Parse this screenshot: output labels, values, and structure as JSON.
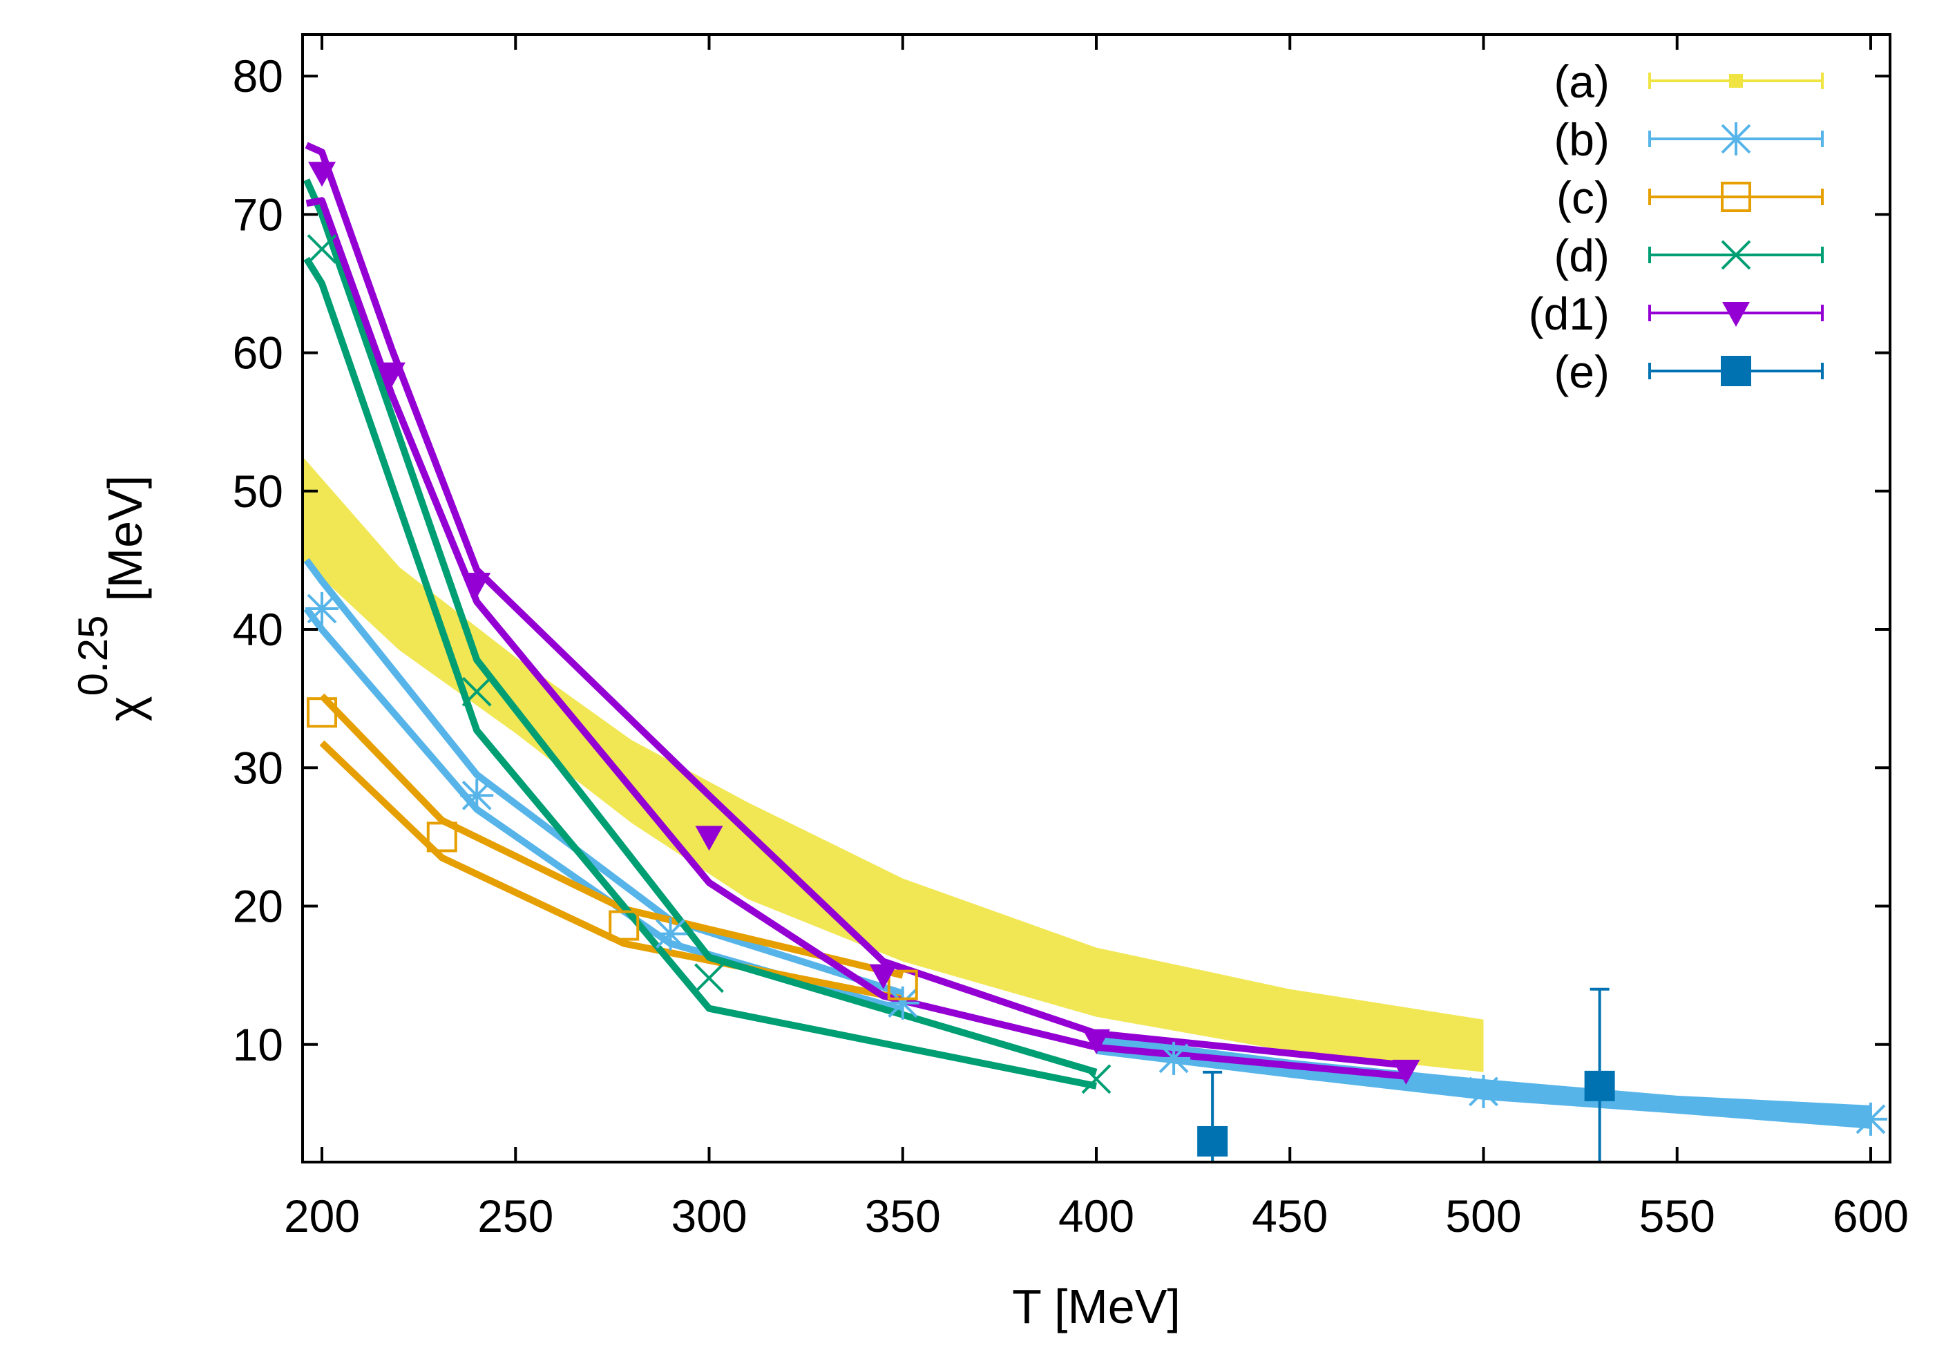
{
  "chart_data": {
    "type": "line",
    "title": "",
    "xlabel": "T [MeV]",
    "ylabel_base": "χ",
    "ylabel_exp": "0.25",
    "ylabel_unit": "[MeV]",
    "xlim": [
      195,
      605
    ],
    "ylim": [
      1.5,
      83
    ],
    "xticks": [
      200,
      250,
      300,
      350,
      400,
      450,
      500,
      550,
      600
    ],
    "yticks": [
      10,
      20,
      30,
      40,
      50,
      60,
      70,
      80
    ],
    "grid": false,
    "legend_position": "top-right",
    "band_a": {
      "name": "(a)",
      "color": "#f0e442",
      "x": [
        195,
        220,
        250,
        280,
        310,
        350,
        400,
        450,
        500
      ],
      "lower": [
        45.0,
        38.5,
        32.5,
        26.0,
        20.5,
        16.0,
        12.0,
        9.5,
        8.0
      ],
      "upper": [
        52.5,
        44.5,
        38.0,
        32.0,
        27.5,
        22.0,
        17.0,
        14.0,
        11.8
      ]
    },
    "band_b": {
      "name": "(b) band",
      "color": "#56b4e9",
      "x": [
        400,
        450,
        500,
        550,
        600
      ],
      "lower": [
        9.3,
        7.6,
        6.0,
        5.0,
        3.9
      ],
      "upper": [
        10.7,
        8.9,
        7.5,
        6.3,
        5.6
      ]
    },
    "series": [
      {
        "name": "(a)",
        "color": "#f0e442",
        "marker": "small-square",
        "points": [],
        "upper": [],
        "lower": []
      },
      {
        "name": "(b)",
        "color": "#56b4e9",
        "marker": "star",
        "points": [
          [
            200,
            41.5
          ],
          [
            240,
            28.0
          ],
          [
            290,
            18.0
          ],
          [
            350,
            13.0
          ],
          [
            420,
            9.0
          ],
          [
            500,
            6.6
          ],
          [
            600,
            4.6
          ]
        ],
        "upper": [
          [
            196,
            45.0
          ],
          [
            200,
            43.5
          ],
          [
            240,
            29.5
          ],
          [
            290,
            19.0
          ],
          [
            350,
            13.7
          ]
        ],
        "lower": [
          [
            196,
            41.5
          ],
          [
            200,
            40.0
          ],
          [
            240,
            27.0
          ],
          [
            290,
            17.3
          ],
          [
            350,
            12.5
          ]
        ]
      },
      {
        "name": "(c)",
        "color": "#e69f00",
        "marker": "open-square",
        "points": [
          [
            200,
            34.0
          ],
          [
            231,
            25.0
          ],
          [
            278,
            18.6
          ],
          [
            350,
            14.3
          ]
        ],
        "upper": [
          [
            200,
            35.2
          ],
          [
            231,
            26.2
          ],
          [
            278,
            19.8
          ],
          [
            350,
            15.0
          ]
        ],
        "lower": [
          [
            200,
            31.8
          ],
          [
            231,
            23.5
          ],
          [
            278,
            17.3
          ],
          [
            350,
            13.3
          ]
        ]
      },
      {
        "name": "(d)",
        "color": "#009e73",
        "marker": "cross",
        "points": [
          [
            200,
            67.5
          ],
          [
            240,
            35.5
          ],
          [
            300,
            14.8
          ],
          [
            400,
            7.5
          ]
        ],
        "upper": [
          [
            196,
            72.5
          ],
          [
            200,
            70.0
          ],
          [
            240,
            37.8
          ],
          [
            300,
            16.3
          ],
          [
            400,
            8.0
          ]
        ],
        "lower": [
          [
            196,
            66.8
          ],
          [
            200,
            65.0
          ],
          [
            240,
            32.7
          ],
          [
            300,
            12.6
          ],
          [
            400,
            7.0
          ]
        ]
      },
      {
        "name": "(d1)",
        "color": "#9400d3",
        "marker": "triangle-down",
        "points": [
          [
            200,
            73.0
          ],
          [
            218,
            58.5
          ],
          [
            240,
            43.3
          ],
          [
            300,
            25.0
          ],
          [
            345,
            15.0
          ],
          [
            400,
            10.3
          ],
          [
            480,
            8.1
          ]
        ],
        "upper": [
          [
            196,
            75.0
          ],
          [
            200,
            74.5
          ],
          [
            218,
            60.3
          ],
          [
            240,
            44.3
          ],
          [
            300,
            28.0
          ],
          [
            345,
            16.0
          ],
          [
            400,
            10.8
          ],
          [
            480,
            8.5
          ]
        ],
        "lower": [
          [
            196,
            70.8
          ],
          [
            200,
            71.0
          ],
          [
            218,
            57.0
          ],
          [
            240,
            42.0
          ],
          [
            300,
            21.7
          ],
          [
            345,
            13.5
          ],
          [
            400,
            9.8
          ],
          [
            480,
            7.7
          ]
        ]
      },
      {
        "name": "(e)",
        "color": "#0072b2",
        "marker": "filled-square",
        "points": [
          [
            430,
            3.0
          ],
          [
            530,
            7.0
          ]
        ],
        "error_low": [
          1.5,
          1.5
        ],
        "error_high": [
          8.0,
          14.0
        ]
      }
    ],
    "legend": [
      "(a)",
      "(b)",
      "(c)",
      "(d)",
      "(d1)",
      "(e)"
    ]
  }
}
